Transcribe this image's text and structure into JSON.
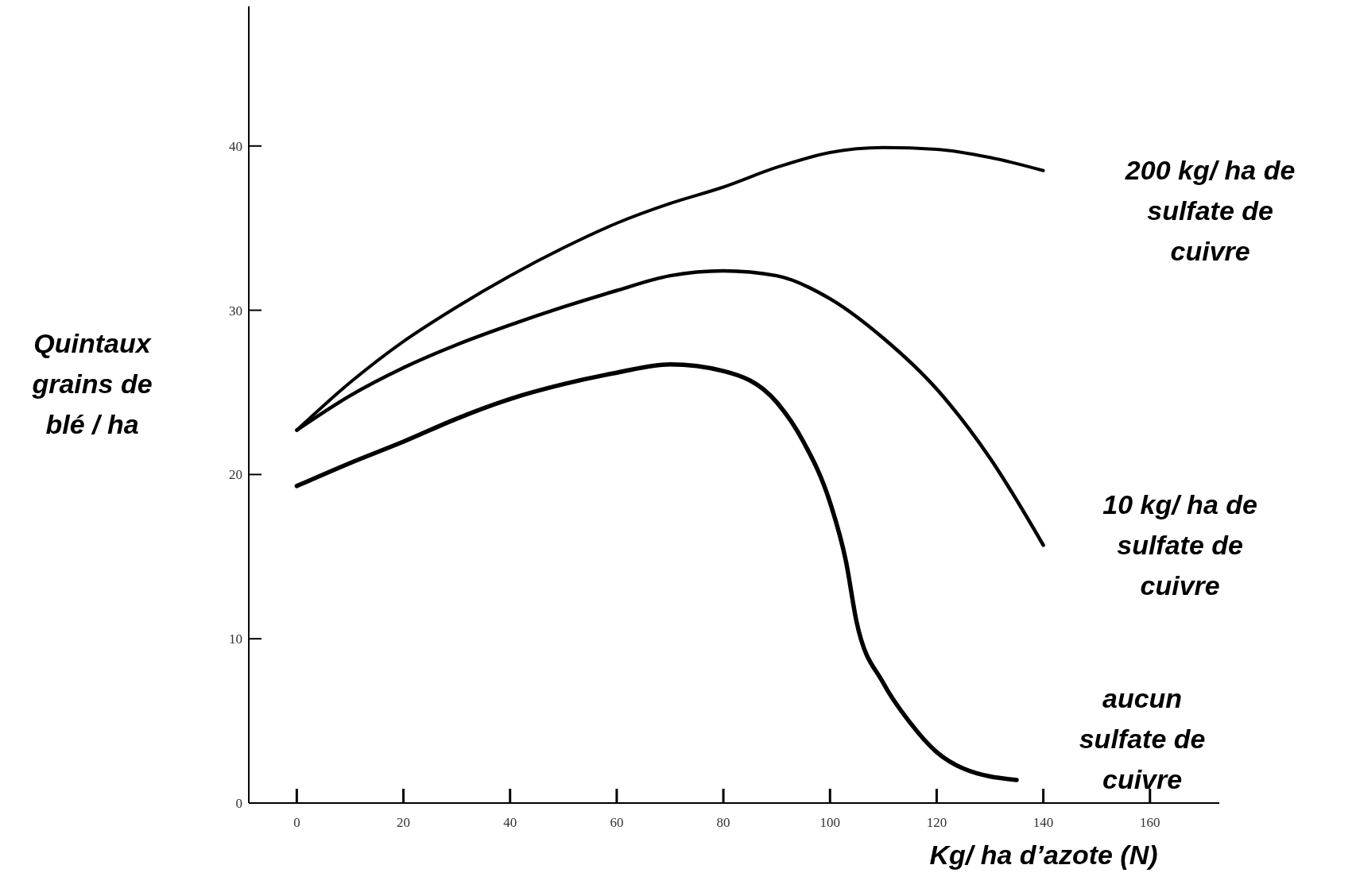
{
  "chart_data": {
    "type": "line",
    "xlabel": "Kg/ ha d’azote (N)",
    "ylabel": "Quintaux\ngrains de\nblé / ha",
    "xlim": [
      -9,
      173
    ],
    "ylim": [
      0,
      48.5
    ],
    "xticks": [
      0,
      20,
      40,
      60,
      80,
      100,
      120,
      140,
      160
    ],
    "yticks": [
      0,
      10,
      20,
      30,
      40
    ],
    "grid": false,
    "marker": "none",
    "line_style": "solid",
    "series": [
      {
        "name": "200 kg/ ha de\nsulfate de\ncuivre",
        "color": "#000000",
        "x": [
          0,
          10,
          20,
          30,
          40,
          50,
          60,
          70,
          80,
          90,
          100,
          110,
          120,
          130,
          140
        ],
        "values": [
          22.7,
          25.6,
          28.1,
          30.2,
          32.1,
          33.8,
          35.3,
          36.5,
          37.5,
          38.7,
          39.6,
          39.9,
          39.8,
          39.3,
          38.5
        ]
      },
      {
        "name": "10 kg/ ha de\nsulfate de\ncuivre",
        "color": "#000000",
        "x": [
          0,
          10,
          20,
          30,
          40,
          50,
          60,
          70,
          80,
          90,
          100,
          110,
          120,
          130,
          140
        ],
        "values": [
          22.7,
          24.8,
          26.5,
          27.9,
          29.1,
          30.2,
          31.2,
          32.1,
          32.4,
          32.1,
          30.7,
          28.3,
          25.2,
          21.0,
          15.7
        ]
      },
      {
        "name": "aucun\nsulfate de\ncuivre",
        "color": "#000000",
        "x": [
          0,
          10,
          20,
          30,
          40,
          50,
          60,
          70,
          80,
          90,
          95,
          100,
          103,
          105,
          110,
          115,
          120,
          125,
          135
        ],
        "values": [
          19.3,
          20.7,
          22.0,
          23.4,
          24.6,
          25.5,
          26.2,
          26.7,
          26.3,
          24.4,
          22.0,
          18.3,
          14.7,
          11.0,
          7.3,
          4.9,
          3.1,
          2.1,
          1.4
        ]
      }
    ]
  }
}
